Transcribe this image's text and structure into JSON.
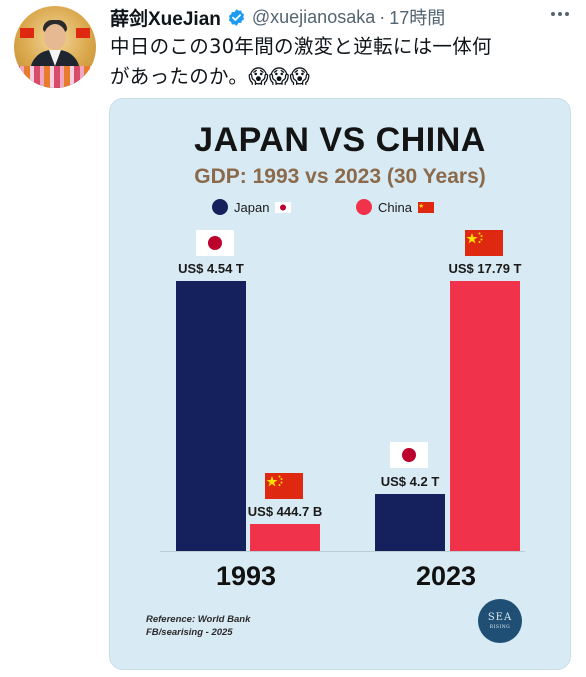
{
  "tweet": {
    "author_name": "薛剑XueJian",
    "handle": "@xuejianosaka",
    "separator": "·",
    "time": "17時間",
    "text_line1": "中日のこの30年間の激変と逆転には一体何",
    "text_line2": "があったのか。",
    "emoji": "😱😱😱"
  },
  "chart": {
    "title": "JAPAN VS CHINA",
    "subtitle": "GDP: 1993 vs 2023 (30 Years)",
    "legend": [
      {
        "label": "Japan",
        "color": "#15215c"
      },
      {
        "label": "China",
        "color": "#f0324a"
      }
    ],
    "reference_line1": "Reference: World Bank",
    "reference_line2": "FB/searising - 2025",
    "logo_text": "SEA",
    "logo_sub": "RISING"
  },
  "chart_data": {
    "type": "bar",
    "title": "JAPAN VS CHINA",
    "subtitle": "GDP: 1993 vs 2023 (30 Years)",
    "categories": [
      "1993",
      "2023"
    ],
    "series": [
      {
        "name": "Japan",
        "values": [
          4.54,
          4.2
        ],
        "labels": [
          "US$ 4.54 T",
          "US$ 4.2 T"
        ],
        "color": "#15215c"
      },
      {
        "name": "China",
        "values": [
          0.4447,
          17.79
        ],
        "labels": [
          "US$ 444.7 B",
          "US$ 17.79 T"
        ],
        "color": "#f0324a"
      }
    ],
    "unit": "trillion USD",
    "legend_position": "top",
    "grid": false
  },
  "colors": {
    "japan": "#15215c",
    "china": "#f0324a",
    "card_bg": "#d8eaf3",
    "verified": "#1d9bf0"
  },
  "icons": [
    "verified-badge-icon",
    "more-options-icon",
    "japan-flag-icon",
    "china-flag-icon",
    "sea-rising-logo"
  ]
}
